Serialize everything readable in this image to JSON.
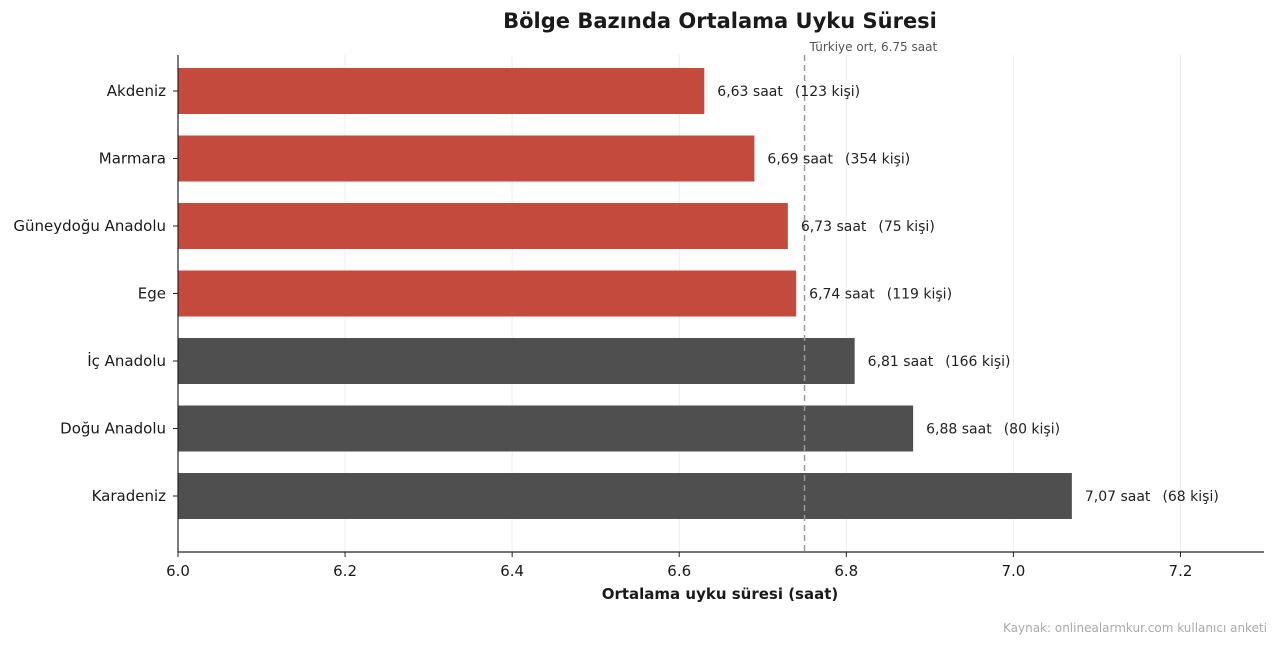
{
  "chart_data": {
    "type": "bar",
    "orientation": "horizontal",
    "title": "Bölge Bazında Ortalama Uyku Süresi",
    "xlabel": "Ortalama uyku süresi (saat)",
    "ylabel": "",
    "xlim": [
      6.0,
      7.3
    ],
    "xticks": [
      6.0,
      6.2,
      6.4,
      6.6,
      6.8,
      7.0,
      7.2
    ],
    "xtick_labels": [
      "6.0",
      "6.2",
      "6.4",
      "6.6",
      "6.8",
      "7.0",
      "7.2"
    ],
    "grid": "vertical",
    "categories": [
      "Akdeniz",
      "Marmara",
      "Güneydoğu Anadolu",
      "Ege",
      "İç Anadolu",
      "Doğu Anadolu",
      "Karadeniz"
    ],
    "values": [
      6.63,
      6.69,
      6.73,
      6.74,
      6.81,
      6.88,
      7.07
    ],
    "value_labels": [
      "6,63 saat",
      "6,69 saat",
      "6,73 saat",
      "6,74 saat",
      "6,81 saat",
      "6,88 saat",
      "7,07 saat"
    ],
    "count_labels": [
      "(123 kişi)",
      "(354 kişi)",
      "(75 kişi)",
      "(119 kişi)",
      "(166 kişi)",
      "(80 kişi)",
      "(68 kişi)"
    ],
    "reference_line": {
      "value": 6.75,
      "label": "Türkiye ort, 6.75 saat"
    },
    "colors": {
      "below_average": "#c44a3e",
      "above_average": "#4f4f4f",
      "reference": "#999999",
      "grid": "#eeeeee"
    },
    "source": "Kaynak: onlinealarmkur.com kullanıcı anketi"
  }
}
